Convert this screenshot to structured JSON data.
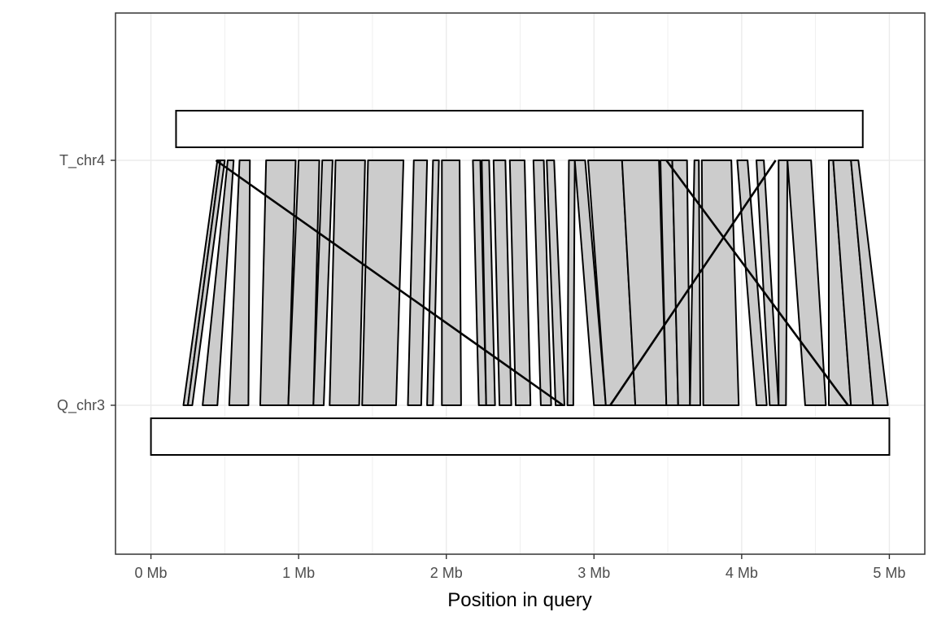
{
  "chart_data": {
    "type": "synteny",
    "xlabel": "Position in query",
    "x_ticks": [
      "0 Mb",
      "1 Mb",
      "2 Mb",
      "3 Mb",
      "4 Mb",
      "5 Mb"
    ],
    "x_tick_values": [
      0,
      1,
      2,
      3,
      4,
      5
    ],
    "x_unit": "Mb",
    "xlim": [
      -0.24,
      5.24
    ],
    "y_categories": [
      "Q_chr3",
      "T_chr4"
    ],
    "grid": true,
    "chromosomes": [
      {
        "name": "T_chr4",
        "start": 0.17,
        "end": 4.82
      },
      {
        "name": "Q_chr3",
        "start": 0.0,
        "end": 5.0
      }
    ],
    "links": [
      {
        "q": [
          0.22,
          0.25
        ],
        "t": [
          0.45,
          0.47
        ],
        "style": "filled"
      },
      {
        "q": [
          0.25,
          0.28
        ],
        "t": [
          0.47,
          0.5
        ],
        "style": "filled"
      },
      {
        "q": [
          0.35,
          0.45
        ],
        "t": [
          0.52,
          0.56
        ],
        "style": "filled"
      },
      {
        "q": [
          0.53,
          0.66
        ],
        "t": [
          0.6,
          0.67
        ],
        "style": "filled"
      },
      {
        "q": [
          0.74,
          0.93
        ],
        "t": [
          0.78,
          0.98
        ],
        "style": "filled"
      },
      {
        "q": [
          0.93,
          1.1
        ],
        "t": [
          1.0,
          1.14
        ],
        "style": "filled"
      },
      {
        "q": [
          1.1,
          1.17
        ],
        "t": [
          1.16,
          1.23
        ],
        "style": "filled"
      },
      {
        "q": [
          1.21,
          1.41
        ],
        "t": [
          1.25,
          1.45
        ],
        "style": "filled"
      },
      {
        "q": [
          1.43,
          1.66
        ],
        "t": [
          1.47,
          1.71
        ],
        "style": "filled"
      },
      {
        "q": [
          1.74,
          1.83
        ],
        "t": [
          1.78,
          1.87
        ],
        "style": "filled"
      },
      {
        "q": [
          1.87,
          1.91
        ],
        "t": [
          1.91,
          1.95
        ],
        "style": "filled"
      },
      {
        "q": [
          1.97,
          2.1
        ],
        "t": [
          1.97,
          2.09
        ],
        "style": "filled"
      },
      {
        "q": [
          2.22,
          2.27
        ],
        "t": [
          2.18,
          2.23
        ],
        "style": "filled"
      },
      {
        "q": [
          2.27,
          2.33
        ],
        "t": [
          2.24,
          2.29
        ],
        "style": "filled"
      },
      {
        "q": [
          2.36,
          2.44
        ],
        "t": [
          2.32,
          2.4
        ],
        "style": "filled"
      },
      {
        "q": [
          2.47,
          2.57
        ],
        "t": [
          2.43,
          2.53
        ],
        "style": "filled"
      },
      {
        "q": [
          2.64,
          2.71
        ],
        "t": [
          2.59,
          2.66
        ],
        "style": "filled"
      },
      {
        "q": [
          2.74,
          2.8
        ],
        "t": [
          2.68,
          2.73
        ],
        "style": "filled"
      },
      {
        "q": [
          2.82,
          2.86
        ],
        "t": [
          2.83,
          2.87
        ],
        "style": "filled"
      },
      {
        "q": [
          3.0,
          3.08
        ],
        "t": [
          2.87,
          2.94
        ],
        "style": "filled"
      },
      {
        "q": [
          3.08,
          3.28
        ],
        "t": [
          2.96,
          3.19
        ],
        "style": "filled"
      },
      {
        "q": [
          3.28,
          3.49
        ],
        "t": [
          3.19,
          3.44
        ],
        "style": "filled"
      },
      {
        "q": [
          3.49,
          3.57
        ],
        "t": [
          3.45,
          3.53
        ],
        "style": "filled"
      },
      {
        "q": [
          3.57,
          3.65
        ],
        "t": [
          3.53,
          3.63
        ],
        "style": "filled"
      },
      {
        "q": [
          3.65,
          3.72
        ],
        "t": [
          3.68,
          3.71
        ],
        "style": "filled"
      },
      {
        "q": [
          3.74,
          3.98
        ],
        "t": [
          3.73,
          3.93
        ],
        "style": "filled"
      },
      {
        "q": [
          4.1,
          4.17
        ],
        "t": [
          3.97,
          4.04
        ],
        "style": "filled"
      },
      {
        "q": [
          4.19,
          4.25
        ],
        "t": [
          4.1,
          4.15
        ],
        "style": "filled"
      },
      {
        "q": [
          4.25,
          4.3
        ],
        "t": [
          4.25,
          4.31
        ],
        "style": "filled"
      },
      {
        "q": [
          4.43,
          4.57
        ],
        "t": [
          4.31,
          4.47
        ],
        "style": "filled"
      },
      {
        "q": [
          4.59,
          4.74
        ],
        "t": [
          4.59,
          4.62
        ],
        "style": "filled"
      },
      {
        "q": [
          4.74,
          4.89
        ],
        "t": [
          4.62,
          4.74
        ],
        "style": "filled"
      },
      {
        "q": [
          4.89,
          4.99
        ],
        "t": [
          4.74,
          4.79
        ],
        "style": "filled"
      },
      {
        "q": [
          2.79,
          2.79
        ],
        "t": [
          0.44,
          0.44
        ],
        "style": "line"
      },
      {
        "q": [
          3.11,
          3.11
        ],
        "t": [
          4.23,
          4.23
        ],
        "style": "line"
      },
      {
        "q": [
          4.72,
          4.72
        ],
        "t": [
          3.49,
          3.49
        ],
        "style": "line"
      }
    ]
  }
}
